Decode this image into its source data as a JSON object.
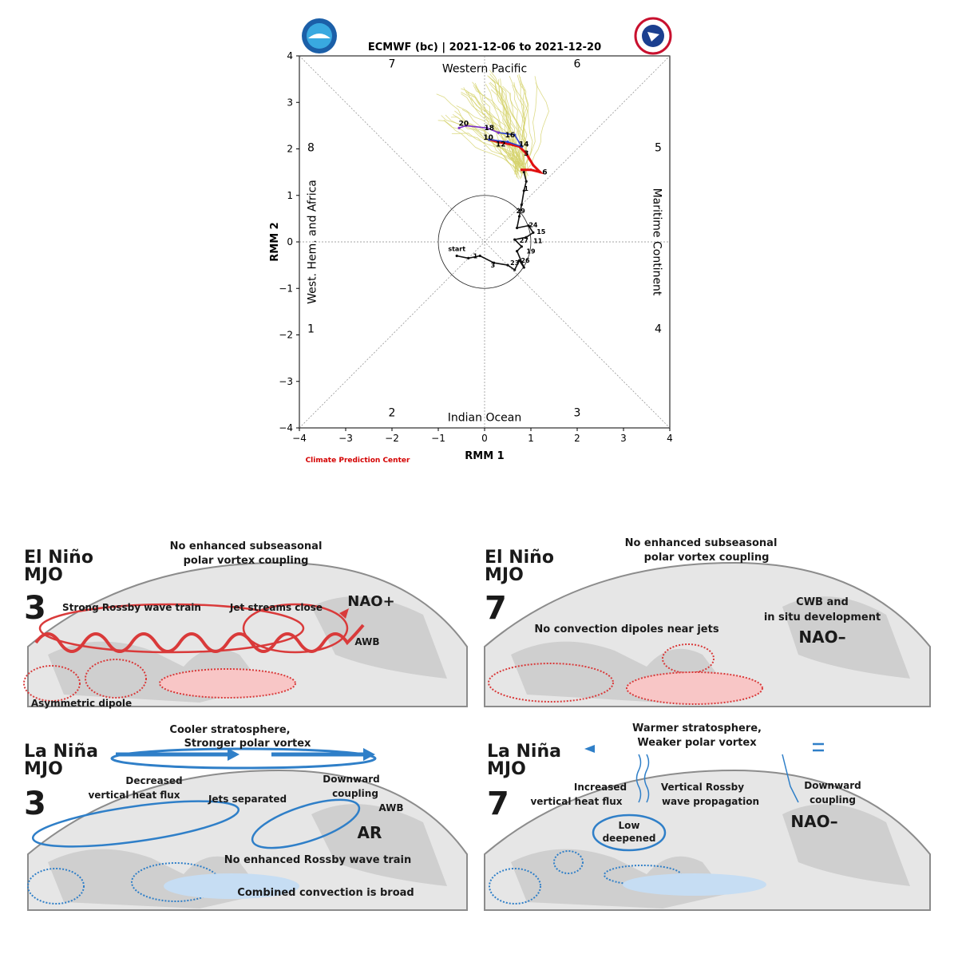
{
  "chart_data": {
    "type": "scatter",
    "title": "ECMWF (bc) | 2021-12-06 to 2021-12-20",
    "xlabel": "RMM 1",
    "ylabel": "RMM 2",
    "xlim": [
      -4,
      4
    ],
    "ylim": [
      -4,
      4
    ],
    "xticks": [
      "−4",
      "−3",
      "−2",
      "−1",
      "0",
      "1",
      "2",
      "3",
      "4"
    ],
    "yticks": [
      "−4",
      "−3",
      "−2",
      "−1",
      "0",
      "1",
      "2",
      "3",
      "4"
    ],
    "phase_labels": [
      {
        "text": "7",
        "x": -2.0,
        "y": 3.75
      },
      {
        "text": "6",
        "x": 2.0,
        "y": 3.75
      },
      {
        "text": "8",
        "x": -3.75,
        "y": 1.95
      },
      {
        "text": "5",
        "x": 3.75,
        "y": 1.95
      },
      {
        "text": "1",
        "x": -3.75,
        "y": -1.95
      },
      {
        "text": "4",
        "x": 3.75,
        "y": -1.95
      },
      {
        "text": "2",
        "x": -2.0,
        "y": -3.75
      },
      {
        "text": "3",
        "x": 2.0,
        "y": -3.75
      }
    ],
    "region_labels": {
      "top": "Western Pacific",
      "bottom": "Indian Ocean",
      "left": "West. Hem. and Africa",
      "right": "Maritime Continent"
    },
    "credit": "Climate Prediction Center",
    "observed": {
      "start_label": "start",
      "points": [
        [
          -0.6,
          -0.3
        ],
        [
          -0.35,
          -0.35
        ],
        [
          -0.1,
          -0.3
        ],
        [
          0.2,
          -0.45
        ],
        [
          0.5,
          -0.5
        ],
        [
          0.65,
          -0.6
        ],
        [
          0.75,
          -0.4
        ],
        [
          0.85,
          -0.55
        ],
        [
          0.7,
          -0.2
        ],
        [
          0.8,
          -0.1
        ],
        [
          0.65,
          0.05
        ],
        [
          0.9,
          0.1
        ],
        [
          1.05,
          0.2
        ],
        [
          0.95,
          0.35
        ],
        [
          0.7,
          0.3
        ],
        [
          0.75,
          0.55
        ],
        [
          0.8,
          0.8
        ],
        [
          0.85,
          1.1
        ],
        [
          0.9,
          1.3
        ],
        [
          0.85,
          1.5
        ]
      ],
      "day_labels": [
        {
          "text": "1",
          "x": -0.2,
          "y": -0.35
        },
        {
          "text": "3",
          "x": 0.18,
          "y": -0.55
        },
        {
          "text": "23",
          "x": 0.65,
          "y": -0.5
        },
        {
          "text": "26",
          "x": 0.88,
          "y": -0.45
        },
        {
          "text": "19",
          "x": 1.0,
          "y": -0.25
        },
        {
          "text": "27",
          "x": 0.85,
          "y": -0.02
        },
        {
          "text": "11",
          "x": 1.15,
          "y": -0.03
        },
        {
          "text": "15",
          "x": 1.22,
          "y": 0.17
        },
        {
          "text": "24",
          "x": 1.05,
          "y": 0.32
        },
        {
          "text": "29",
          "x": 0.78,
          "y": 0.62
        },
        {
          "text": "1",
          "x": 0.9,
          "y": 1.1
        }
      ]
    },
    "ensemble_mean": {
      "points": [
        [
          0.8,
          1.55
        ],
        [
          1.0,
          1.55
        ],
        [
          1.2,
          1.5
        ],
        [
          1.05,
          1.65
        ],
        [
          0.9,
          1.9
        ],
        [
          0.75,
          2.05
        ],
        [
          0.55,
          2.1
        ],
        [
          0.3,
          2.15
        ],
        [
          0.1,
          2.2
        ]
      ],
      "day_labels": [
        {
          "text": "6",
          "x": 1.3,
          "y": 1.45
        },
        {
          "text": "3",
          "x": 0.9,
          "y": 1.85
        },
        {
          "text": "12",
          "x": 0.35,
          "y": 2.05
        },
        {
          "text": "10",
          "x": 0.08,
          "y": 2.2
        }
      ]
    },
    "ensemble_tail": {
      "points": [
        [
          0.1,
          2.2
        ],
        [
          0.5,
          2.15
        ],
        [
          0.8,
          2.05
        ],
        [
          0.65,
          2.3
        ],
        [
          0.3,
          2.35
        ],
        [
          0.05,
          2.45
        ],
        [
          -0.4,
          2.5
        ],
        [
          -0.55,
          2.45
        ]
      ],
      "day_labels": [
        {
          "text": "14",
          "x": 0.85,
          "y": 2.05
        },
        {
          "text": "16",
          "x": 0.55,
          "y": 2.25
        },
        {
          "text": "18",
          "x": 0.1,
          "y": 2.4
        },
        {
          "text": "20",
          "x": -0.45,
          "y": 2.5
        }
      ]
    },
    "grid": false,
    "amplitude_circle_radius": 1
  },
  "figure_b": {
    "panels": [
      {
        "title_lines": [
          "El Niño",
          "MJO",
          "3"
        ],
        "header_lines": [
          "No enhanced subseasonal",
          "polar vortex coupling"
        ],
        "labels": [
          "Strong Rossby wave train",
          "Jet streams close",
          "NAO+",
          "AWB",
          "Asymmetric dipole"
        ],
        "color": "#d93a3a"
      },
      {
        "title_lines": [
          "El Niño",
          "MJO",
          "7"
        ],
        "header_lines": [
          "No enhanced subseasonal",
          "polar vortex coupling"
        ],
        "labels": [
          "No convection dipoles near jets",
          "CWB and",
          "in situ development",
          "NAO–"
        ],
        "color": "#d93a3a"
      },
      {
        "title_lines": [
          "La Niña",
          "MJO",
          "3"
        ],
        "header_lines": [
          "Cooler stratosphere,",
          "Stronger polar vortex"
        ],
        "labels": [
          "Decreased",
          "vertical heat flux",
          "Jets separated",
          "Downward",
          "coupling",
          "AWB",
          "AR",
          "No enhanced Rossby wave train",
          "Combined convection is broad"
        ],
        "color": "#2f7fc8"
      },
      {
        "title_lines": [
          "La Niña",
          "MJO",
          "7"
        ],
        "header_lines": [
          "Warmer stratosphere,",
          "Weaker polar vortex"
        ],
        "labels": [
          "Increased",
          "vertical heat flux",
          "Vertical Rossby",
          "wave propagation",
          "Downward",
          "coupling",
          "NAO–",
          "Low",
          "deepened"
        ],
        "color": "#2f7fc8"
      }
    ]
  }
}
